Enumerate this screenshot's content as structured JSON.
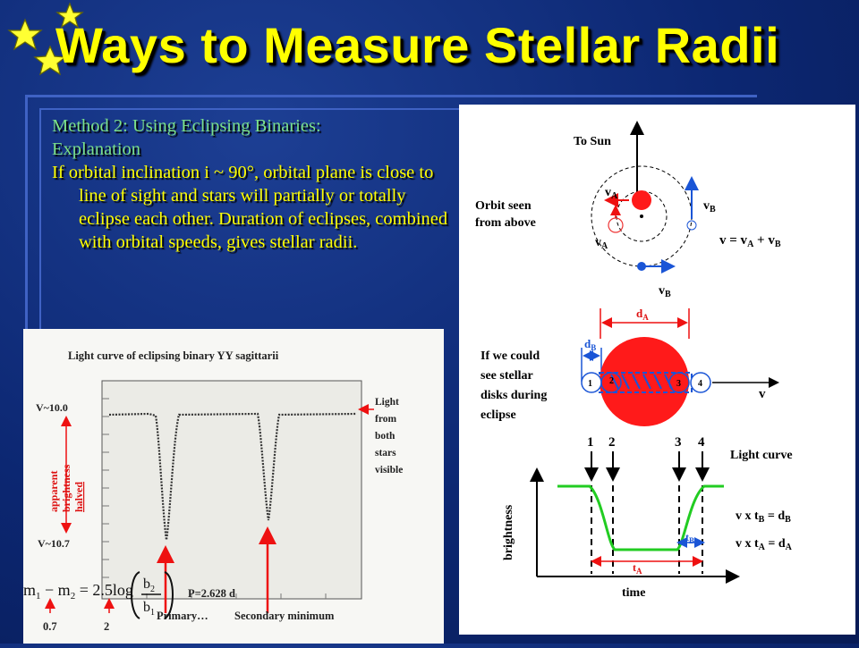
{
  "slide": {
    "title": "Ways to Measure Stellar Radii"
  },
  "text": {
    "heading_line1": "Method 2: Using Eclipsing Binaries:",
    "heading_line2": "Explanation",
    "paragraph": "If orbital inclination i ~ 90°, orbital plane is close to line of sight and stars will partially or totally eclipse each other. Duration of eclipses, combined with orbital speeds, gives stellar radii."
  },
  "diagram": {
    "to_sun": "To Sun",
    "orbit_label_1": "Orbit seen",
    "orbit_label_2": "from above",
    "va": "v",
    "vb": "v",
    "sub_a": "A",
    "sub_b": "B",
    "velocity_eq": "v = v",
    "plus": " + v",
    "da": "d",
    "db": "d",
    "if_1": "If we could",
    "if_2": "see stellar",
    "if_3": "disks during",
    "if_4": "eclipse",
    "v": "v",
    "pos_1": "1",
    "pos_2": "2",
    "pos_3": "3",
    "pos_4": "4",
    "light_curve": "Light curve",
    "brightness": "brightness",
    "time": "time",
    "ta": "t",
    "tb": "t",
    "eq_b_left": "v x t",
    "eq_b_right": " = d",
    "eq_a_left": "v x t",
    "eq_a_right": " = d",
    "colors": {
      "star_red": "#ff1a1a",
      "curve_green": "#22cc22",
      "arrow_blue": "#1a55d6",
      "label_red": "#d11"
    }
  },
  "photo": {
    "caption": "Light curve of eclipsing binary YY sagittarii",
    "v_top": "V~10.0",
    "v_bottom": "V~10.7",
    "apparent_1": "apparent",
    "apparent_2": "brightness",
    "apparent_3": "halved",
    "light_1": "Light",
    "light_2": "from",
    "light_3": "both",
    "light_4": "stars",
    "light_5": "visible",
    "period": "P=2.628 d",
    "primary": "Primary…",
    "secondary": "Secondary minimum",
    "formula_lhs": "m",
    "formula_eq": "= 2.5log",
    "b2": "b",
    "b1": "b",
    "val_07": "0.7",
    "val_2": "2"
  }
}
